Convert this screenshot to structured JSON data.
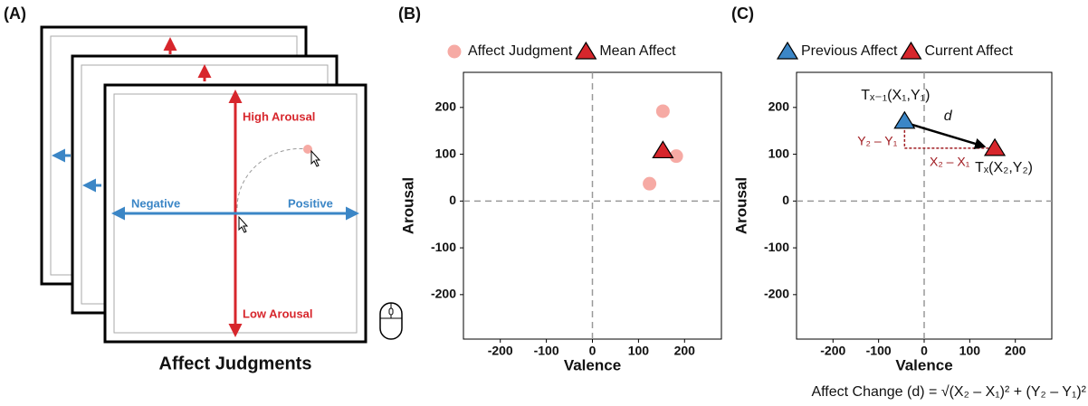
{
  "panel_labels": [
    "(A)",
    "(B)",
    "(C)"
  ],
  "panel_a": {
    "title": "Affect Judgments",
    "high": "High Arousal",
    "low": "Low Arousal",
    "negative": "Negative",
    "positive": "Positive"
  },
  "chart_data": [
    {
      "type": "scatter",
      "xlabel": "Valence",
      "ylabel": "Arousal",
      "xlim": [
        -280,
        280
      ],
      "ylim": [
        -295,
        275
      ],
      "xticks": [
        -200,
        -100,
        0,
        100,
        200
      ],
      "yticks": [
        -200,
        -100,
        0,
        100,
        200
      ],
      "series": [
        {
          "name": "Affect Judgment",
          "color": "#f6aaa4",
          "marker": "circle",
          "x": [
            153,
            182,
            124
          ],
          "y": [
            192,
            96,
            37
          ]
        },
        {
          "name": "Mean Affect",
          "color": "#d7262c",
          "marker": "triangle",
          "x": [
            153
          ],
          "y": [
            108
          ]
        }
      ]
    },
    {
      "type": "scatter",
      "xlabel": "Valence",
      "ylabel": "Arousal",
      "xlim": [
        -280,
        280
      ],
      "ylim": [
        -295,
        275
      ],
      "xticks": [
        -200,
        -100,
        0,
        100,
        200
      ],
      "yticks": [
        -200,
        -100,
        0,
        100,
        200
      ],
      "series": [
        {
          "name": "Previous Affect",
          "color": "#3b86c6",
          "marker": "triangle",
          "x": [
            -43
          ],
          "y": [
            171
          ]
        },
        {
          "name": "Current Affect",
          "color": "#d7262c",
          "marker": "triangle",
          "x": [
            155
          ],
          "y": [
            113
          ]
        }
      ],
      "annotations": {
        "start": "Tₓ₋₁(X₁,Y₁)",
        "end": "Tₓ(X₂,Y₂)",
        "d": "d",
        "dy": "Y₂ – Y₁",
        "dx": "X₂ – X₁"
      },
      "formula": "Affect Change (d) = √(X₂ – X₁)² + (Y₂ – Y₁)²"
    }
  ]
}
